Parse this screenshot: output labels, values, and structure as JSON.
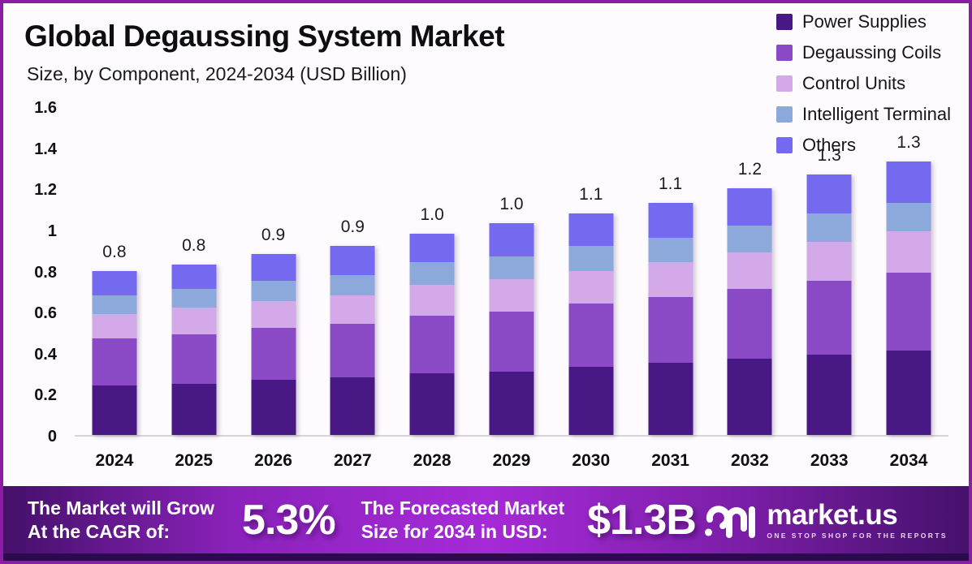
{
  "header": {
    "title": "Global Degaussing System Market",
    "subtitle": "Size, by Component, 2024-2034 (USD Billion)"
  },
  "chart_data": {
    "type": "bar",
    "stacked": true,
    "title": "Global Degaussing System Market Size, by Component, 2024-2034 (USD Billion)",
    "xlabel": "",
    "ylabel": "",
    "ylim": [
      0,
      1.6
    ],
    "yticks": [
      "0",
      "0.2",
      "0.4",
      "0.6",
      "0.8",
      "1",
      "1.2",
      "1.4",
      "1.6"
    ],
    "grid": false,
    "legend_position": "top-right",
    "categories": [
      "2024",
      "2025",
      "2026",
      "2027",
      "2028",
      "2029",
      "2030",
      "2031",
      "2032",
      "2033",
      "2034"
    ],
    "series": [
      {
        "name": "Power Supplies",
        "color": "#481884",
        "values": [
          0.24,
          0.25,
          0.27,
          0.28,
          0.3,
          0.31,
          0.33,
          0.35,
          0.37,
          0.39,
          0.41
        ]
      },
      {
        "name": "Degaussing Coils",
        "color": "#8a4ac6",
        "values": [
          0.23,
          0.24,
          0.25,
          0.26,
          0.28,
          0.29,
          0.31,
          0.32,
          0.34,
          0.36,
          0.38
        ]
      },
      {
        "name": "Control Units",
        "color": "#d4a9ea",
        "values": [
          0.12,
          0.13,
          0.13,
          0.14,
          0.15,
          0.16,
          0.16,
          0.17,
          0.18,
          0.19,
          0.2
        ]
      },
      {
        "name": "Intelligent Terminal",
        "color": "#8da9dc",
        "values": [
          0.09,
          0.09,
          0.1,
          0.1,
          0.11,
          0.11,
          0.12,
          0.12,
          0.13,
          0.14,
          0.14
        ]
      },
      {
        "name": "Others",
        "color": "#7569f0",
        "values": [
          0.12,
          0.12,
          0.13,
          0.14,
          0.14,
          0.16,
          0.16,
          0.17,
          0.18,
          0.19,
          0.2
        ]
      }
    ],
    "totals": [
      "0.8",
      "0.8",
      "0.9",
      "0.9",
      "1.0",
      "1.0",
      "1.1",
      "1.1",
      "1.2",
      "1.3",
      "1.3"
    ]
  },
  "banner": {
    "cagr_line1": "The Market will Grow",
    "cagr_line2": "At the CAGR of:",
    "cagr_value": "5.3%",
    "forecast_line1": "The Forecasted Market",
    "forecast_line2": "Size for 2034 in USD:",
    "forecast_value": "$1.3B",
    "brand_name": "market.us",
    "brand_tagline": "ONE STOP SHOP FOR THE REPORTS"
  },
  "colors": {
    "frame_border": "#8b1ca3",
    "background": "#fdfbfd",
    "banner_left": "#441069",
    "banner_center": "#a62ad8",
    "banner_strip": "#2b0a4e"
  }
}
